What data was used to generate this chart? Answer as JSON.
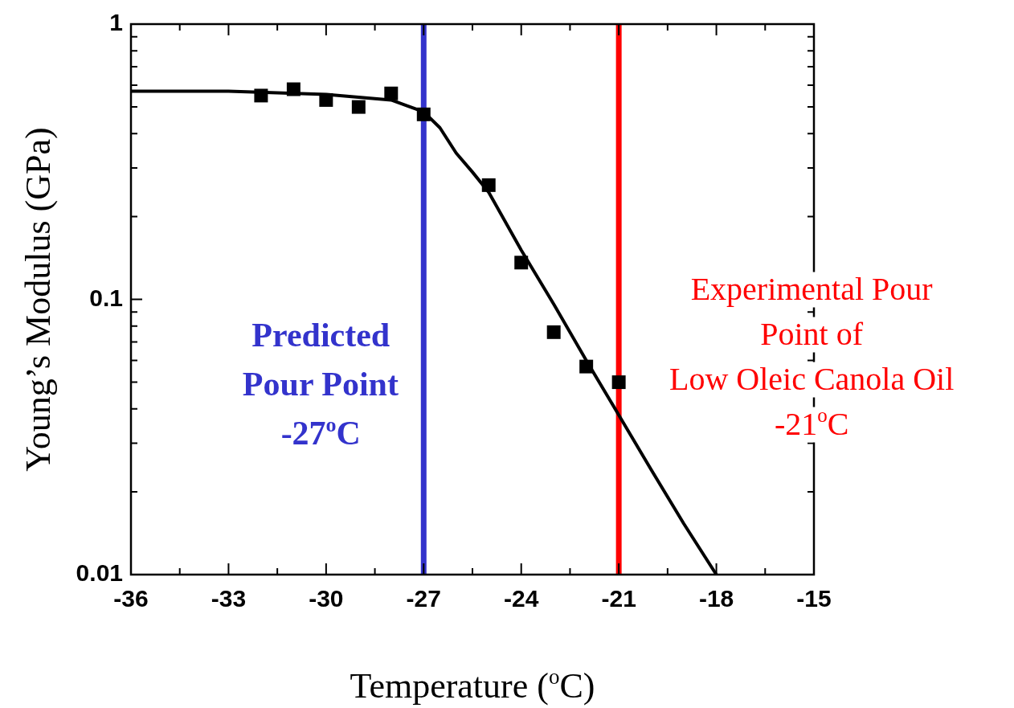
{
  "chart_data": {
    "type": "scatter",
    "xlabel": "Temperature ($^{o}$C)",
    "ylabel": "Young’s Modulus (GPa)",
    "log": "y",
    "grid": false,
    "legend": false,
    "marker": "square",
    "xlim": [
      -36,
      -15
    ],
    "xticks": [
      -36,
      {
        "value": -34.5,
        "label": null
      },
      -33,
      {
        "value": -31.5,
        "label": null
      },
      -30,
      {
        "value": -28.5,
        "label": null
      },
      -27,
      {
        "value": -25.5,
        "label": null
      },
      -24,
      {
        "value": -22.5,
        "label": null
      },
      -21,
      {
        "value": -19.5,
        "label": null
      },
      -18,
      {
        "value": -16.5,
        "label": null
      },
      -15
    ],
    "ylim": [
      0.01,
      1
    ],
    "yticks": [
      0.01,
      {
        "value": 0.02,
        "label": null
      },
      {
        "value": 0.03,
        "label": null
      },
      {
        "value": 0.04,
        "label": null
      },
      {
        "value": 0.05,
        "label": null
      },
      {
        "value": 0.06,
        "label": null
      },
      {
        "value": 0.07,
        "label": null
      },
      {
        "value": 0.08,
        "label": null
      },
      {
        "value": 0.09,
        "label": null
      },
      0.1,
      {
        "value": 0.2,
        "label": null
      },
      {
        "value": 0.3,
        "label": null
      },
      {
        "value": 0.4,
        "label": null
      },
      {
        "value": 0.5,
        "label": null
      },
      {
        "value": 0.6,
        "label": null
      },
      {
        "value": 0.7,
        "label": null
      },
      {
        "value": 0.8,
        "label": null
      },
      {
        "value": 0.9,
        "label": null
      },
      1
    ],
    "series": [
      {
        "type": "scatter",
        "color": "#000000",
        "x": [
          -32,
          -31,
          -30,
          -29,
          -28,
          -27,
          -25,
          -24,
          -23,
          -22,
          -21
        ],
        "values": [
          0.55,
          0.58,
          0.53,
          0.5,
          0.56,
          0.47,
          0.26,
          0.136,
          0.076,
          0.057,
          0.05
        ]
      },
      {
        "type": "line",
        "color": "#000000",
        "marker": "none",
        "x": [
          -36,
          -33,
          -30,
          -28,
          -27,
          -26.5,
          -26,
          -25.5,
          -25,
          -24,
          -23,
          -22,
          -21,
          -20,
          -19,
          -18
        ],
        "values": [
          0.57,
          0.57,
          0.555,
          0.53,
          0.48,
          0.42,
          0.34,
          0.29,
          0.245,
          0.151,
          0.096,
          0.06,
          0.038,
          0.024,
          0.0153,
          0.01
        ]
      }
    ],
    "ref_lines": [
      {
        "axis": "x",
        "value": -27,
        "label": "Predicted\nPour Point\n-27$^{o}$C",
        "color": "#3333cc"
      },
      {
        "axis": "x",
        "value": -21,
        "label": "Experimental Pour\nPoint of\nLow Oleic Canola Oil\n-21$^{o}$C",
        "color": "#ff0000"
      }
    ]
  }
}
